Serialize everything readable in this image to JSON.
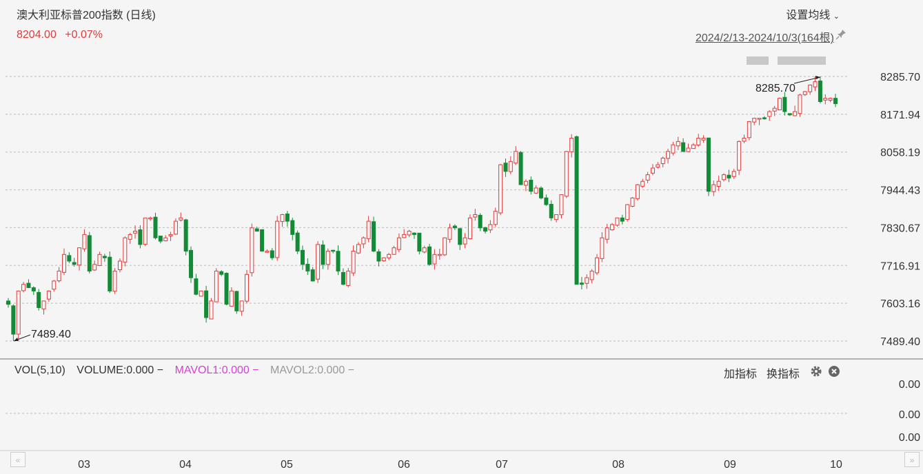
{
  "header": {
    "title": "澳大利亚标普200指数 (日线)",
    "price": "8204.00",
    "change": "+0.07%",
    "ma_setting_label": "设置均线",
    "range_label": "2024/2/13-2024/10/3(164根)"
  },
  "price_axis": [
    "8285.70",
    "8171.94",
    "8058.19",
    "7944.43",
    "7830.67",
    "7716.91",
    "7603.16",
    "7489.40"
  ],
  "annotations": {
    "high_label": "8285.70",
    "low_label": "7489.40"
  },
  "x_axis": [
    "03",
    "04",
    "05",
    "06",
    "07",
    "08",
    "09",
    "10"
  ],
  "volume_panel": {
    "legend": {
      "vol": "VOL(5,10)",
      "volume": "VOLUME:0.000 −",
      "mavol1": "MAVOL1:0.000 −",
      "mavol2": "MAVOL2:0.000 −"
    },
    "axis": [
      "0.00",
      "0.00",
      "0.00"
    ],
    "add_indicator_label": "加指标",
    "switch_indicator_label": "换指标"
  },
  "colors": {
    "up": "#e03b3b",
    "down": "#138a36",
    "price_text": "#e03b3b",
    "mavol1": "#d63fd6",
    "mavol2": "#999999"
  },
  "chart_data": {
    "type": "candlestick",
    "title": "澳大利亚标普200指数 (日线)",
    "period": "2024/2/13-2024/10/3",
    "bar_count": 164,
    "y_range": [
      7489.4,
      8285.7
    ],
    "high": 8285.7,
    "low": 7489.4,
    "last_close": 8204.0,
    "change_pct": "+0.07%",
    "month_ticks": [
      "03",
      "04",
      "05",
      "06",
      "07",
      "08",
      "09",
      "10"
    ],
    "closes": [
      7600,
      7510,
      7640,
      7660,
      7650,
      7640,
      7590,
      7610,
      7640,
      7670,
      7700,
      7750,
      7730,
      7720,
      7770,
      7810,
      7700,
      7720,
      7750,
      7740,
      7640,
      7700,
      7730,
      7800,
      7810,
      7820,
      7780,
      7860,
      7860,
      7800,
      7790,
      7800,
      7810,
      7850,
      7860,
      7760,
      7680,
      7630,
      7640,
      7560,
      7610,
      7700,
      7690,
      7600,
      7640,
      7580,
      7610,
      7690,
      7830,
      7820,
      7760,
      7760,
      7740,
      7850,
      7870,
      7850,
      7810,
      7760,
      7720,
      7700,
      7670,
      7780,
      7720,
      7760,
      7760,
      7700,
      7660,
      7700,
      7760,
      7780,
      7800,
      7850,
      7760,
      7730,
      7740,
      7750,
      7770,
      7800,
      7810,
      7820,
      7810,
      7760,
      7770,
      7720,
      7750,
      7750,
      7800,
      7830,
      7830,
      7780,
      7800,
      7860,
      7870,
      7830,
      7820,
      7840,
      7880,
      8020,
      8000,
      8030,
      8060,
      7960,
      7970,
      7940,
      7950,
      7920,
      7900,
      7860,
      7870,
      7930,
      8060,
      8100,
      7660,
      7660,
      7680,
      7700,
      7740,
      7800,
      7830,
      7840,
      7860,
      7850,
      7900,
      7920,
      7960,
      7970,
      7990,
      8010,
      8020,
      8040,
      8060,
      8080,
      8090,
      8060,
      8070,
      8080,
      8100,
      8100,
      7940,
      7960,
      7970,
      7990,
      7980,
      8000,
      8090,
      8100,
      8150,
      8160,
      8160,
      8160,
      8180,
      8190,
      8220,
      8180,
      8170,
      8180,
      8230,
      8240,
      8260,
      8270,
      8210,
      8220,
      8220,
      8204
    ]
  }
}
